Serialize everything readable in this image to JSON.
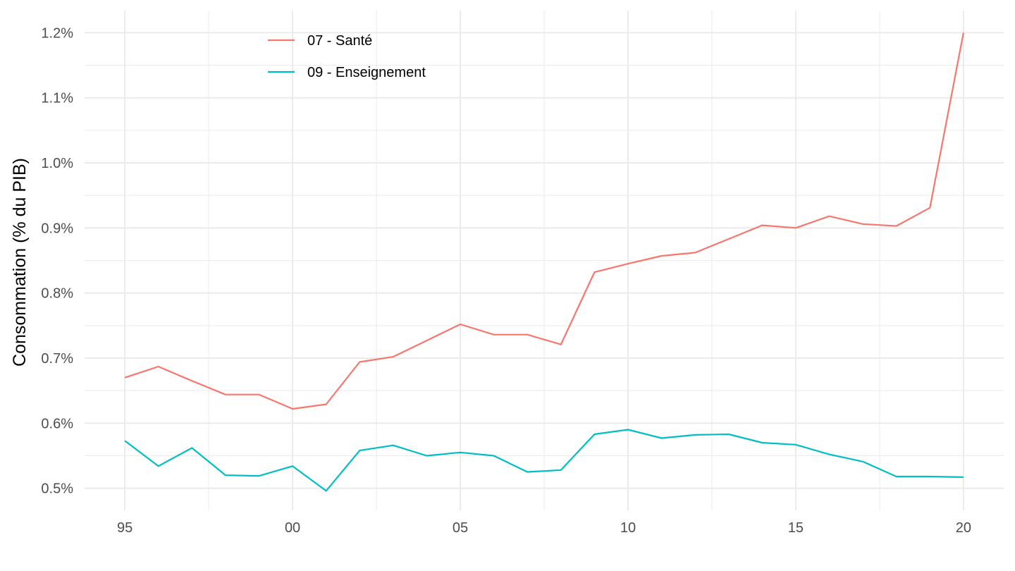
{
  "chart_data": {
    "type": "line",
    "title": "",
    "xlabel": "",
    "ylabel": "Consommation (% du PIB)",
    "x": [
      1995,
      1996,
      1997,
      1998,
      1999,
      2000,
      2001,
      2002,
      2003,
      2004,
      2005,
      2006,
      2007,
      2008,
      2009,
      2010,
      2011,
      2012,
      2013,
      2014,
      2015,
      2016,
      2017,
      2018,
      2019,
      2020
    ],
    "x_ticks": [
      1995,
      2000,
      2005,
      2010,
      2015,
      2020
    ],
    "x_tick_labels": [
      "95",
      "00",
      "05",
      "10",
      "15",
      "20"
    ],
    "y_ticks": [
      0.5,
      0.6,
      0.7,
      0.8,
      0.9,
      1.0,
      1.1,
      1.2
    ],
    "y_tick_labels": [
      "0.5%",
      "0.6%",
      "0.7%",
      "0.8%",
      "0.9%",
      "1.0%",
      "1.1%",
      "1.2%"
    ],
    "xlim": [
      1993.8,
      2021.2
    ],
    "ylim": [
      0.466,
      1.234
    ],
    "grid": true,
    "legend_position": "top-left",
    "series": [
      {
        "name": "07 - Santé",
        "color": "#F8766D",
        "values": [
          0.67,
          0.687,
          0.665,
          0.644,
          0.644,
          0.622,
          0.629,
          0.694,
          0.702,
          0.727,
          0.752,
          0.736,
          0.736,
          0.721,
          0.832,
          0.845,
          0.857,
          0.862,
          0.883,
          0.904,
          0.9,
          0.918,
          0.906,
          0.903,
          0.931,
          1.2
        ]
      },
      {
        "name": "09 - Enseignement",
        "color": "#00BFC4",
        "values": [
          0.573,
          0.534,
          0.562,
          0.52,
          0.519,
          0.534,
          0.496,
          0.558,
          0.566,
          0.55,
          0.555,
          0.55,
          0.525,
          0.528,
          0.583,
          0.59,
          0.577,
          0.582,
          0.583,
          0.57,
          0.567,
          0.552,
          0.541,
          0.518,
          0.518,
          0.517
        ]
      }
    ]
  }
}
